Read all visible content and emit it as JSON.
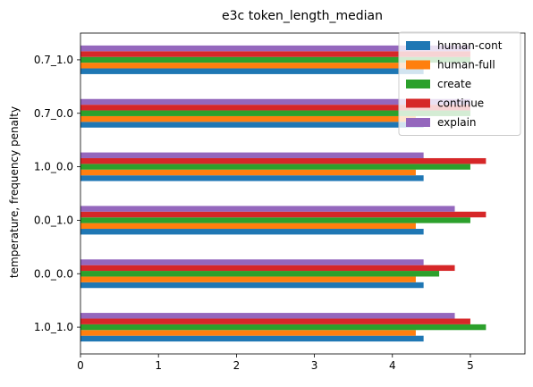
{
  "chart_data": {
    "type": "bar",
    "orientation": "horizontal",
    "title": "e3c token_length_median",
    "xlabel": "",
    "ylabel": "temperature, frequency penalty",
    "xlim": [
      0,
      5.7
    ],
    "x_ticks": [
      "0",
      "1",
      "2",
      "3",
      "4",
      "5"
    ],
    "categories": [
      "1.0_1.0",
      "0.0_0.0",
      "0.0_1.0",
      "1.0_0.0",
      "0.7_0.0",
      "0.7_1.0"
    ],
    "series": [
      {
        "name": "human-cont",
        "color": "#1f77b4",
        "values": [
          4.4,
          4.4,
          4.4,
          4.4,
          4.4,
          4.4
        ]
      },
      {
        "name": "human-full",
        "color": "#ff7f0e",
        "values": [
          4.3,
          4.3,
          4.3,
          4.3,
          4.3,
          4.3
        ]
      },
      {
        "name": "create",
        "color": "#2ca02c",
        "values": [
          5.2,
          4.6,
          5.0,
          5.0,
          5.0,
          5.0
        ]
      },
      {
        "name": "continue",
        "color": "#d62728",
        "values": [
          5.0,
          4.8,
          5.2,
          5.2,
          5.0,
          5.0
        ]
      },
      {
        "name": "explain",
        "color": "#9467bd",
        "values": [
          4.8,
          4.4,
          4.8,
          4.4,
          5.0,
          5.0
        ]
      }
    ],
    "legend_position": "top-right",
    "grid": false
  }
}
